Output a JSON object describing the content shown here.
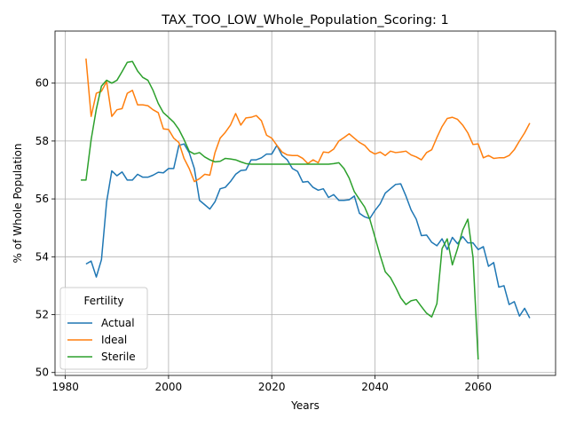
{
  "chart_data": {
    "type": "line",
    "title": "TAX_TOO_LOW_Whole_Population_Scoring: 1",
    "xlabel": "Years",
    "ylabel": "% of Whole Population",
    "xlim": [
      1978,
      2075
    ],
    "ylim": [
      49.9,
      61.8
    ],
    "xticks": [
      1980,
      2000,
      2020,
      2040,
      2060
    ],
    "yticks": [
      50,
      52,
      54,
      56,
      58,
      60
    ],
    "grid": true,
    "legend": {
      "title": "Fertility",
      "placement": "lower-left"
    },
    "series": [
      {
        "name": "Actual",
        "color": "#1f77b4",
        "x": [
          1984,
          1985,
          1986,
          1987,
          1988,
          1989,
          1990,
          1991,
          1992,
          1993,
          1994,
          1995,
          1996,
          1997,
          1998,
          1999,
          2000,
          2001,
          2002,
          2003,
          2004,
          2005,
          2006,
          2007,
          2008,
          2009,
          2010,
          2011,
          2012,
          2013,
          2014,
          2015,
          2016,
          2017,
          2018,
          2019,
          2020,
          2021,
          2022,
          2023,
          2024,
          2025,
          2026,
          2027,
          2028,
          2029,
          2030,
          2031,
          2032,
          2033,
          2034,
          2035,
          2036,
          2037,
          2038,
          2039,
          2040,
          2041,
          2042,
          2043,
          2044,
          2045,
          2046,
          2047,
          2048,
          2049,
          2050,
          2051,
          2052,
          2053,
          2054,
          2055,
          2056,
          2057,
          2058,
          2059,
          2060,
          2061,
          2062,
          2063,
          2064,
          2065,
          2066,
          2067,
          2068,
          2069,
          2070
        ],
        "y": [
          53.75,
          53.85,
          53.3,
          53.9,
          55.9,
          56.97,
          56.8,
          56.93,
          56.65,
          56.65,
          56.85,
          56.75,
          56.75,
          56.82,
          56.92,
          56.9,
          57.05,
          57.05,
          57.85,
          57.9,
          57.6,
          57.05,
          55.95,
          55.8,
          55.65,
          55.9,
          56.35,
          56.4,
          56.6,
          56.85,
          56.98,
          57.0,
          57.35,
          57.35,
          57.42,
          57.55,
          57.55,
          57.85,
          57.5,
          57.35,
          57.05,
          56.95,
          56.58,
          56.6,
          56.4,
          56.3,
          56.35,
          56.05,
          56.15,
          55.95,
          55.95,
          55.97,
          56.1,
          55.5,
          55.38,
          55.32,
          55.6,
          55.83,
          56.2,
          56.35,
          56.5,
          56.52,
          56.1,
          55.62,
          55.3,
          54.73,
          54.75,
          54.5,
          54.38,
          54.62,
          54.25,
          54.67,
          54.45,
          54.7,
          54.48,
          54.48,
          54.25,
          54.35,
          53.67,
          53.8,
          52.95,
          53.0,
          52.35,
          52.45,
          51.95,
          52.22,
          51.88
        ]
      },
      {
        "name": "Ideal",
        "color": "#ff7f0e",
        "x": [
          1984,
          1985,
          1986,
          1987,
          1988,
          1989,
          1990,
          1991,
          1992,
          1993,
          1994,
          1995,
          1996,
          1997,
          1998,
          1999,
          2000,
          2001,
          2002,
          2003,
          2004,
          2005,
          2006,
          2007,
          2008,
          2009,
          2010,
          2011,
          2012,
          2013,
          2014,
          2015,
          2016,
          2017,
          2018,
          2019,
          2020,
          2021,
          2022,
          2023,
          2024,
          2025,
          2026,
          2027,
          2028,
          2029,
          2030,
          2031,
          2032,
          2033,
          2034,
          2035,
          2036,
          2037,
          2038,
          2039,
          2040,
          2041,
          2042,
          2043,
          2044,
          2045,
          2046,
          2047,
          2048,
          2049,
          2050,
          2051,
          2052,
          2053,
          2054,
          2055,
          2056,
          2057,
          2058,
          2059,
          2060,
          2061,
          2062,
          2063,
          2064,
          2065,
          2066,
          2067,
          2068,
          2069,
          2070
        ],
        "y": [
          60.85,
          58.85,
          59.65,
          59.72,
          60.05,
          58.85,
          59.08,
          59.12,
          59.65,
          59.75,
          59.25,
          59.25,
          59.22,
          59.08,
          58.98,
          58.42,
          58.4,
          58.1,
          57.95,
          57.4,
          57.05,
          56.6,
          56.7,
          56.85,
          56.82,
          57.6,
          58.1,
          58.3,
          58.55,
          58.95,
          58.55,
          58.8,
          58.82,
          58.88,
          58.7,
          58.2,
          58.1,
          57.85,
          57.62,
          57.52,
          57.5,
          57.5,
          57.4,
          57.22,
          57.35,
          57.25,
          57.62,
          57.6,
          57.72,
          58.0,
          58.12,
          58.25,
          58.1,
          57.95,
          57.85,
          57.65,
          57.55,
          57.62,
          57.5,
          57.65,
          57.6,
          57.62,
          57.65,
          57.52,
          57.45,
          57.35,
          57.6,
          57.7,
          58.12,
          58.5,
          58.78,
          58.82,
          58.75,
          58.55,
          58.28,
          57.88,
          57.9,
          57.42,
          57.5,
          57.4,
          57.42,
          57.42,
          57.5,
          57.7,
          58.0,
          58.28,
          58.62
        ]
      },
      {
        "name": "Sterile",
        "color": "#2ca02c",
        "x": [
          1983,
          1984,
          1985,
          1986,
          1987,
          1988,
          1989,
          1990,
          1991,
          1992,
          1993,
          1994,
          1995,
          1996,
          1997,
          1998,
          1999,
          2000,
          2001,
          2002,
          2003,
          2004,
          2005,
          2006,
          2007,
          2008,
          2009,
          2010,
          2011,
          2012,
          2013,
          2014,
          2015,
          2016,
          2017,
          2018,
          2019,
          2020,
          2021,
          2022,
          2023,
          2024,
          2025,
          2026,
          2027,
          2028,
          2029,
          2030,
          2031,
          2032,
          2033,
          2034,
          2035,
          2036,
          2037,
          2038,
          2039,
          2040,
          2041,
          2042,
          2043,
          2044,
          2045,
          2046,
          2047,
          2048,
          2049,
          2050,
          2051,
          2052,
          2053,
          2054,
          2055,
          2056,
          2057,
          2058,
          2059,
          2060
        ],
        "y": [
          56.65,
          56.65,
          58.05,
          59.1,
          59.9,
          60.1,
          60.0,
          60.1,
          60.4,
          60.72,
          60.75,
          60.42,
          60.2,
          60.1,
          59.75,
          59.3,
          58.98,
          58.82,
          58.65,
          58.4,
          58.05,
          57.65,
          57.55,
          57.6,
          57.45,
          57.35,
          57.28,
          57.3,
          57.4,
          57.38,
          57.35,
          57.28,
          57.22,
          57.2,
          57.2,
          57.2,
          57.2,
          57.2,
          57.2,
          57.2,
          57.2,
          57.2,
          57.2,
          57.2,
          57.2,
          57.2,
          57.2,
          57.2,
          57.2,
          57.22,
          57.25,
          57.05,
          56.72,
          56.25,
          55.98,
          55.72,
          55.3,
          54.68,
          54.05,
          53.48,
          53.28,
          52.95,
          52.58,
          52.35,
          52.48,
          52.52,
          52.28,
          52.05,
          51.92,
          52.38,
          54.28,
          54.62,
          53.72,
          54.28,
          54.92,
          55.3,
          53.98,
          50.45
        ]
      }
    ]
  }
}
